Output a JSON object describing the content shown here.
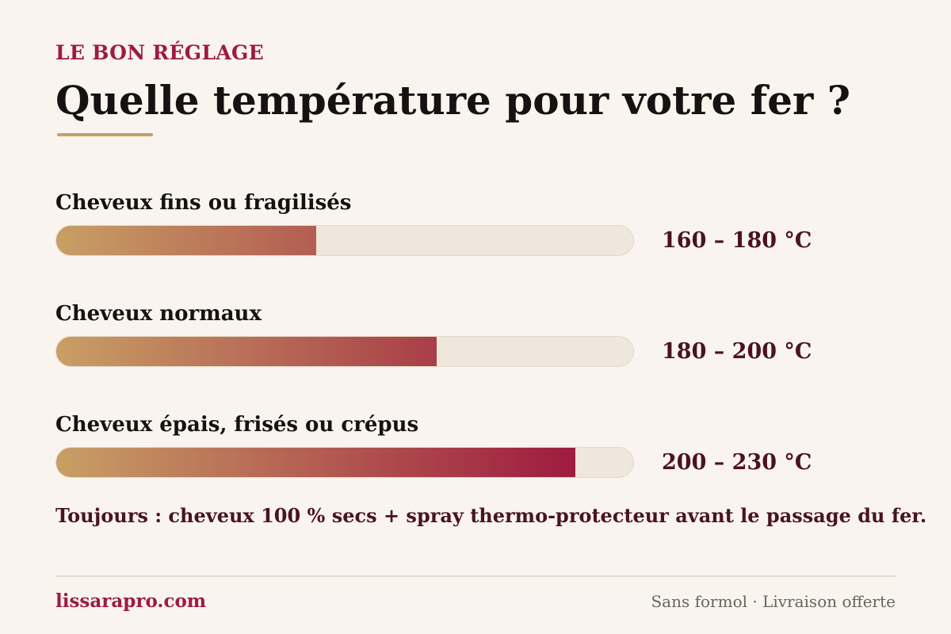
{
  "eyebrow": "LE BON RÉGLAGE",
  "title": "Quelle température pour votre fer ?",
  "rows": [
    {
      "label": "Cheveux fins ou fragilisés",
      "temperature": "160 – 180 °C",
      "fill_fraction": 0.45
    },
    {
      "label": "Cheveux normaux",
      "temperature": "180 – 200 °C",
      "fill_fraction": 0.66
    },
    {
      "label": "Cheveux épais, frisés ou crépus",
      "temperature": "200 – 230 °C",
      "fill_fraction": 0.9
    }
  ],
  "note": "Toujours : cheveux 100 % secs + spray thermo-protecteur avant le passage du fer.",
  "footer": {
    "site": "lissarapro.com",
    "tagline": "Sans formol · Livraison offerte"
  },
  "colors": {
    "background": "#f9f4ee",
    "accent": "#9e1b3f",
    "dark_accent": "#4a1320",
    "gold": "#c89f65",
    "track": "#efe6dc"
  }
}
